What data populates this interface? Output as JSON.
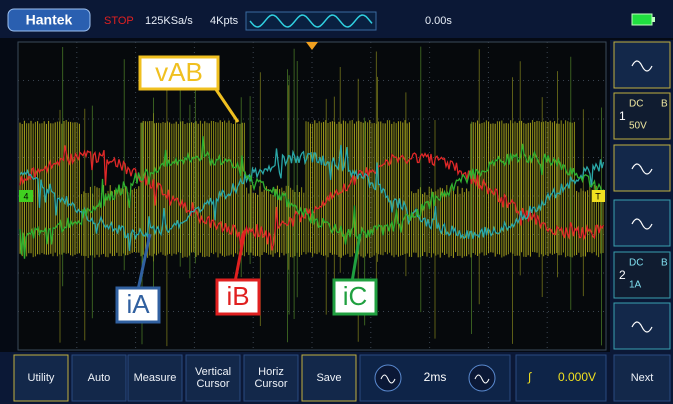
{
  "header": {
    "brand": "Hantek",
    "status": "STOP",
    "sample_rate": "125KSa/s",
    "memory_depth": "4Kpts",
    "time_offset": "0.00s"
  },
  "screen": {
    "channel_marker": "4",
    "trigger_marker": "T",
    "annotations": [
      "vAB",
      "iA",
      "iB",
      "iC"
    ]
  },
  "side_panel": {
    "channels": [
      {
        "number": "1",
        "coupling": "DC",
        "bandwidth": "B",
        "scale": "50V"
      },
      {
        "number": "2",
        "coupling": "DC",
        "bandwidth": "B",
        "scale": "1A"
      }
    ]
  },
  "toolbar": {
    "buttons": [
      [
        "Utility"
      ],
      [
        "Auto"
      ],
      [
        "Measure"
      ],
      [
        "Vertical",
        "Cursor"
      ],
      [
        "Horiz",
        "Cursor"
      ],
      [
        "Save"
      ]
    ],
    "timebase": "2ms",
    "trigger_symbol": "∫",
    "trigger_level": "0.000V",
    "next": "Next"
  }
}
